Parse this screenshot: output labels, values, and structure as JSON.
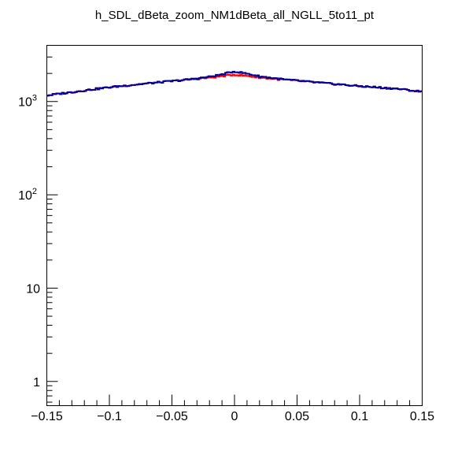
{
  "chart_data": {
    "type": "line",
    "title": "h_SDL_dBeta_zoom_NM1dBeta_all_NGLL_5to11_pt",
    "xlabel": "",
    "ylabel": "",
    "xlim": [
      -0.15,
      0.15
    ],
    "ylim": [
      0.55,
      4000
    ],
    "yscale": "log",
    "x_tick_labels": [
      {
        "value": -0.15,
        "label": "−0.15"
      },
      {
        "value": -0.1,
        "label": "−0.1"
      },
      {
        "value": -0.05,
        "label": "−0.05"
      },
      {
        "value": 0,
        "label": "0"
      },
      {
        "value": 0.05,
        "label": "0.05"
      },
      {
        "value": 0.1,
        "label": "0.1"
      },
      {
        "value": 0.15,
        "label": "0.15"
      }
    ],
    "y_tick_labels": [
      {
        "value": 1,
        "base": "1",
        "exp": ""
      },
      {
        "value": 10,
        "base": "10",
        "exp": ""
      },
      {
        "value": 100,
        "base": "10",
        "exp": "2"
      },
      {
        "value": 1000,
        "base": "10",
        "exp": "3"
      }
    ],
    "bins": 200,
    "series": [
      {
        "name": "red",
        "color": "#ff0000",
        "shape": "histogram",
        "profile": [
          [
            -0.15,
            1160
          ],
          [
            -0.13,
            1260
          ],
          [
            -0.1,
            1420
          ],
          [
            -0.07,
            1560
          ],
          [
            -0.04,
            1700
          ],
          [
            -0.02,
            1800
          ],
          [
            -0.01,
            1870
          ],
          [
            0,
            1940
          ],
          [
            0.01,
            1880
          ],
          [
            0.02,
            1810
          ],
          [
            0.04,
            1710
          ],
          [
            0.07,
            1580
          ],
          [
            0.1,
            1460
          ],
          [
            0.13,
            1370
          ],
          [
            0.15,
            1270
          ]
        ]
      },
      {
        "name": "blue",
        "color": "#000099",
        "shape": "histogram",
        "profile": [
          [
            -0.15,
            1160
          ],
          [
            -0.13,
            1260
          ],
          [
            -0.1,
            1420
          ],
          [
            -0.07,
            1560
          ],
          [
            -0.04,
            1700
          ],
          [
            -0.02,
            1840
          ],
          [
            -0.01,
            1950
          ],
          [
            0,
            2100
          ],
          [
            0.01,
            1990
          ],
          [
            0.02,
            1860
          ],
          [
            0.04,
            1720
          ],
          [
            0.07,
            1580
          ],
          [
            0.1,
            1460
          ],
          [
            0.13,
            1370
          ],
          [
            0.15,
            1270
          ]
        ]
      }
    ]
  }
}
